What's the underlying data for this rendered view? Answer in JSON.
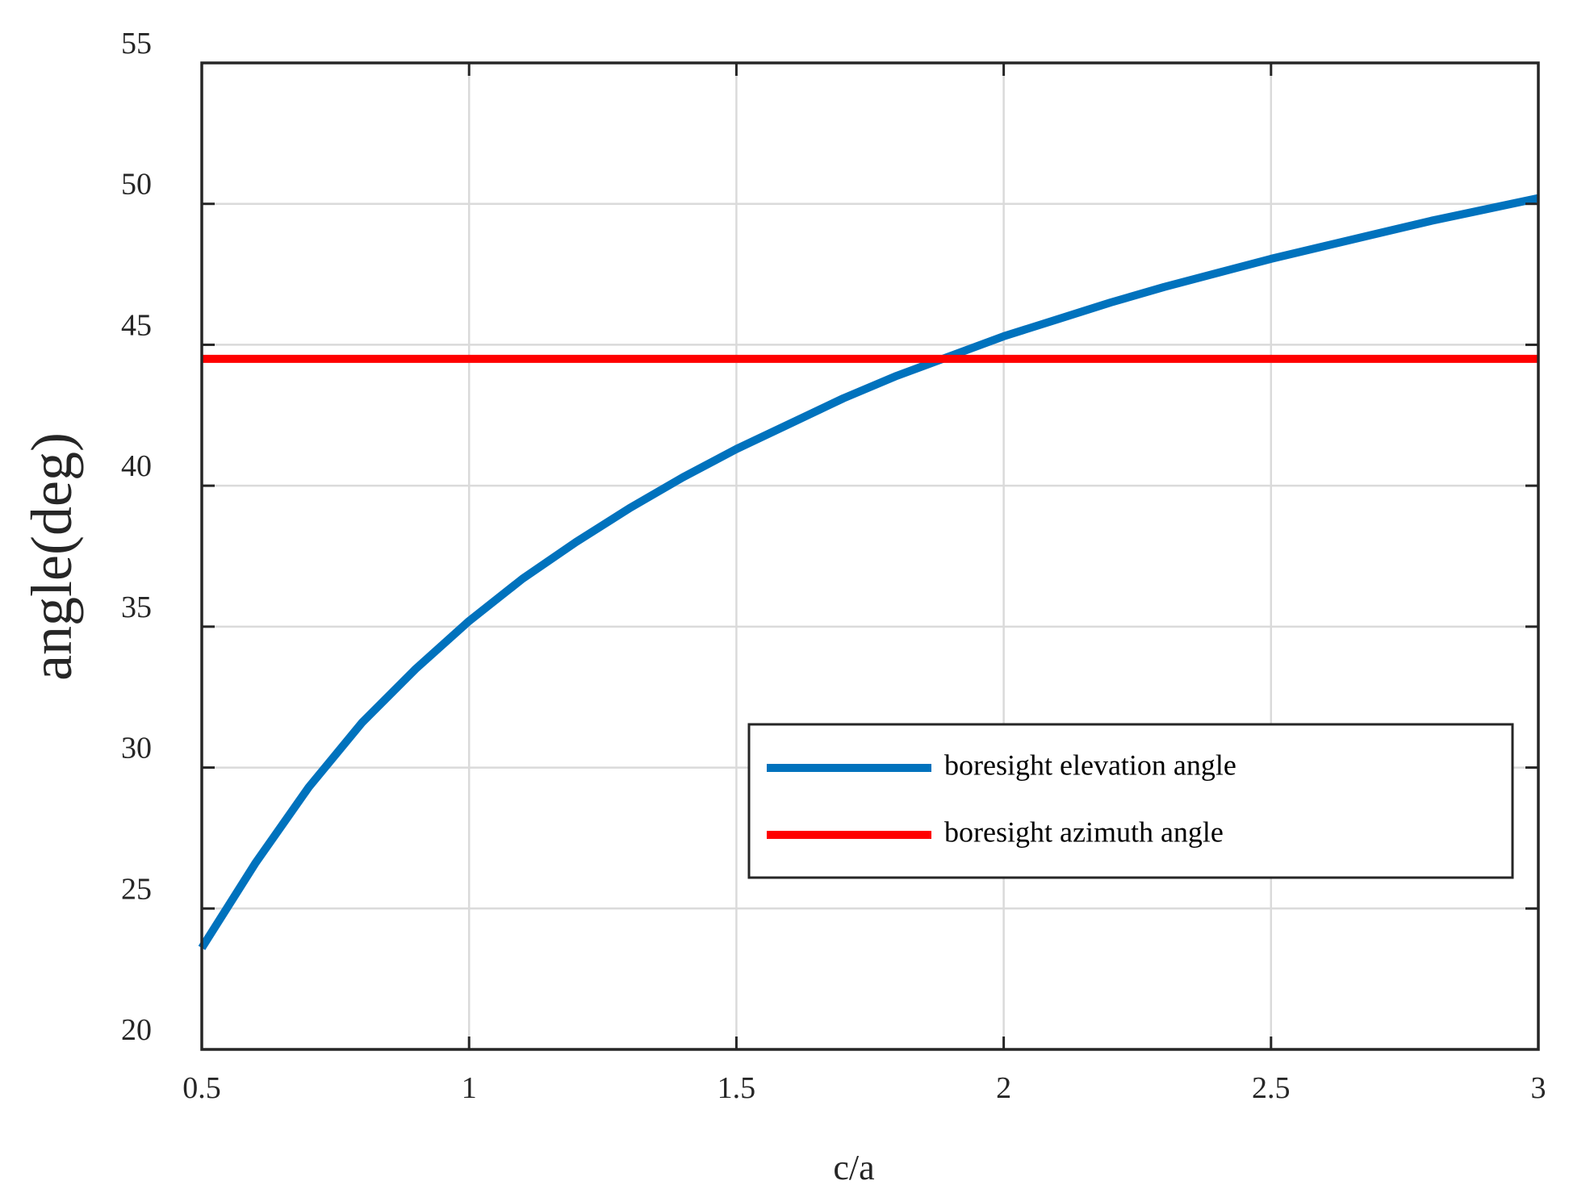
{
  "chart_data": {
    "type": "line",
    "xlabel": "c/a",
    "ylabel": "angle(deg)",
    "xlim": [
      0.5,
      3
    ],
    "ylim": [
      20,
      55
    ],
    "xticks": [
      0.5,
      1,
      1.5,
      2,
      2.5,
      3
    ],
    "xtick_labels": [
      "0.5",
      "1",
      "1.5",
      "2",
      "2.5",
      "3"
    ],
    "yticks": [
      20,
      25,
      30,
      35,
      40,
      45,
      50,
      55
    ],
    "ytick_labels": [
      "20",
      "25",
      "30",
      "35",
      "40",
      "45",
      "50",
      "55"
    ],
    "grid": true,
    "legend_position": "lower-right",
    "series": [
      {
        "name": "boresight elevation angle",
        "color": "#0072BD",
        "x": [
          0.5,
          0.6,
          0.7,
          0.8,
          0.9,
          1.0,
          1.1,
          1.2,
          1.3,
          1.4,
          1.5,
          1.6,
          1.7,
          1.8,
          1.9,
          2.0,
          2.1,
          2.2,
          2.3,
          2.4,
          2.5,
          2.6,
          2.7,
          2.8,
          2.9,
          3.0
        ],
        "y": [
          23.6,
          26.6,
          29.3,
          31.6,
          33.5,
          35.2,
          36.7,
          38.0,
          39.2,
          40.3,
          41.3,
          42.2,
          43.1,
          43.9,
          44.6,
          45.3,
          45.9,
          46.5,
          47.05,
          47.55,
          48.05,
          48.5,
          48.95,
          49.4,
          49.8,
          50.2
        ]
      },
      {
        "name": "boresight azimuth angle",
        "color": "#FF0000",
        "x": [
          0.5,
          3.0
        ],
        "y": [
          44.5,
          44.5
        ]
      }
    ]
  }
}
